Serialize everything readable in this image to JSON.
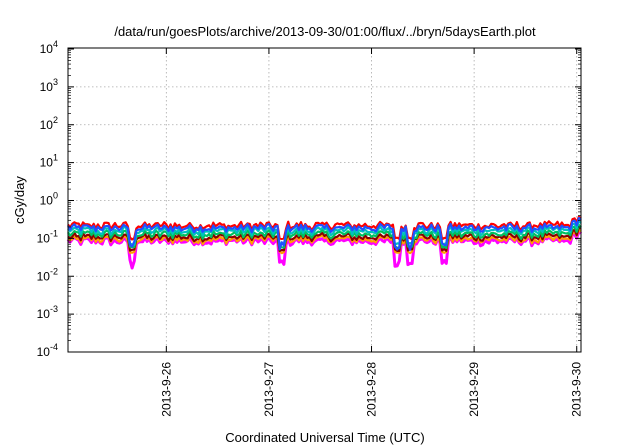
{
  "chart_data": {
    "type": "line",
    "title": "/data/run/goesPlots/archive/2013-09-30/01:00/flux/../bryn/5daysEarth.plot",
    "xlabel": "Coordinated Universal Time (UTC)",
    "ylabel": "cGy/day",
    "y_scale": "log",
    "ylim": [
      0.0001,
      10000
    ],
    "xlim": [
      "2013-09-25 01:00",
      "2013-09-30 01:00"
    ],
    "grid": true,
    "legend": "none",
    "x_ticks": [
      "2013-9-26",
      "2013-9-27",
      "2013-9-28",
      "2013-9-29",
      "2013-9-30"
    ],
    "y_ticks": [
      {
        "base": "10",
        "exp": "-4"
      },
      {
        "base": "10",
        "exp": "-3"
      },
      {
        "base": "10",
        "exp": "-2"
      },
      {
        "base": "10",
        "exp": "-1"
      },
      {
        "base": "10",
        "exp": "0"
      },
      {
        "base": "10",
        "exp": "1"
      },
      {
        "base": "10",
        "exp": "2"
      },
      {
        "base": "10",
        "exp": "3"
      },
      {
        "base": "10",
        "exp": "4"
      }
    ],
    "series": [
      {
        "color": "#ff00ff",
        "values_typical": 0.085,
        "dips_to": 0.02
      },
      {
        "color": "#ffa000",
        "values_typical": 0.095
      },
      {
        "color": "#8b0000",
        "values_typical": 0.11
      },
      {
        "color": "#00c060",
        "values_typical": 0.13
      },
      {
        "color": "#00c0c0",
        "values_typical": 0.16
      },
      {
        "color": "#ff0000",
        "values_typical": 0.22
      },
      {
        "color": "#2050ff",
        "values_typical": 0.19,
        "dips_to": 0.06
      }
    ],
    "notable_dips": [
      {
        "time": "2013-09-25 16:00",
        "value": 0.03
      },
      {
        "time": "2013-09-27 03:00",
        "value": 0.025
      },
      {
        "time": "2013-09-28 06:00",
        "value": 0.02
      },
      {
        "time": "2013-09-28 09:00",
        "value": 0.022
      },
      {
        "time": "2013-09-28 17:00",
        "value": 0.025
      }
    ]
  }
}
